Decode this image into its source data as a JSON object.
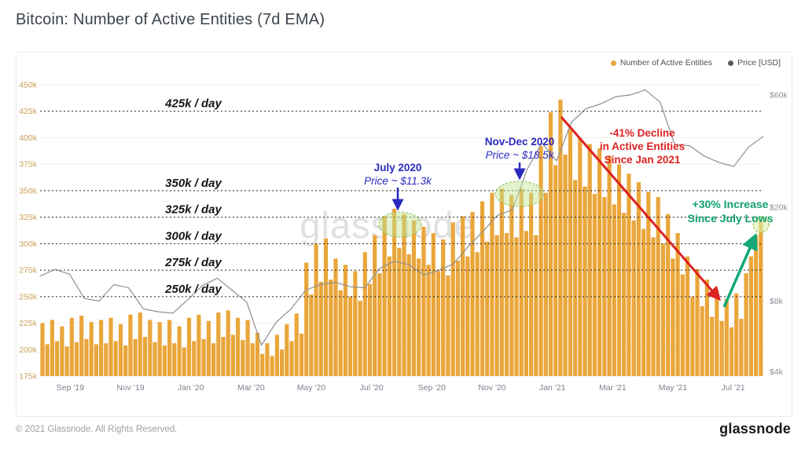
{
  "page": {
    "title": "Bitcoin: Number of Active Entities (7d EMA)",
    "watermark": "glassnode",
    "footer": {
      "copyright": "© 2021 Glassnode. All Rights Reserved.",
      "brand": "glassnode"
    }
  },
  "legend": {
    "items": [
      {
        "label": "Number of Active Entities",
        "color": "#EAA63B"
      },
      {
        "label": "Price [USD]",
        "color": "#5c5c5c"
      }
    ]
  },
  "colors": {
    "bar": "#EAA63B",
    "price_line": "#8f8f8f",
    "grid": "#f0efec",
    "left_axis_label": "#c9a159",
    "right_axis_label": "#8a8f98",
    "x_axis_label": "#7c828c",
    "ref_line": "#2c2c2c",
    "ref_label": "#151515",
    "blue": "#2a2ac0",
    "red": "#dd2222",
    "green": "#12a877",
    "ellipse_fill": "rgba(191,229,147,0.45)",
    "ellipse_stroke": "#8fbf5a"
  },
  "chart_data": {
    "type": "bar+line",
    "title": "Bitcoin: Number of Active Entities (7d EMA)",
    "x_start": "Aug 2019",
    "x_end": "Aug 2021",
    "x_tick_labels": [
      "Sep '19",
      "Nov '19",
      "Jan '20",
      "Mar '20",
      "May '20",
      "Jul '20",
      "Sep '20",
      "Nov '20",
      "Jan '21",
      "Mar '21",
      "May '21",
      "Jul '21"
    ],
    "left_axis": {
      "unit": "active entities per day (thousands)",
      "min": 175,
      "max": 450,
      "ticks": [
        450,
        425,
        400,
        375,
        350,
        325,
        300,
        275,
        250,
        225,
        200,
        175
      ],
      "tick_suffix": "k"
    },
    "right_axis": {
      "unit": "price USD",
      "scale": "log",
      "ticks": [
        "$60k",
        "$20k",
        "$8k",
        "$4k"
      ],
      "tick_values_usd": [
        60000,
        20000,
        8000,
        4000
      ]
    },
    "series": [
      {
        "name": "Number of Active Entities",
        "type": "bar",
        "unit": "thousands per day",
        "values": [
          225,
          205,
          228,
          208,
          222,
          203,
          230,
          207,
          232,
          210,
          226,
          205,
          228,
          206,
          230,
          208,
          224,
          204,
          233,
          210,
          235,
          212,
          228,
          207,
          226,
          204,
          228,
          206,
          222,
          202,
          230,
          208,
          233,
          210,
          227,
          206,
          235,
          212,
          237,
          214,
          230,
          209,
          228,
          206,
          216,
          196,
          206,
          194,
          214,
          200,
          224,
          208,
          234,
          215,
          282,
          252,
          300,
          264,
          305,
          266,
          286,
          256,
          280,
          250,
          274,
          246,
          292,
          262,
          308,
          272,
          326,
          288,
          333,
          296,
          328,
          290,
          322,
          286,
          316,
          280,
          310,
          274,
          304,
          270,
          320,
          284,
          326,
          288,
          330,
          292,
          340,
          302,
          348,
          308,
          352,
          310,
          346,
          306,
          352,
          312,
          348,
          308,
          392,
          348,
          424,
          374,
          436,
          384,
          408,
          360,
          400,
          354,
          394,
          347,
          390,
          344,
          383,
          337,
          375,
          329,
          366,
          322,
          358,
          314,
          349,
          306,
          344,
          300,
          328,
          286,
          310,
          271,
          288,
          250,
          276,
          241,
          266,
          231,
          256,
          227,
          248,
          221,
          253,
          229,
          272,
          288,
          308,
          322
        ]
      },
      {
        "name": "Price [USD]",
        "type": "line",
        "unit": "USD (thousands)",
        "values": [
          10.2,
          10.9,
          10.4,
          8.2,
          8.0,
          9.4,
          9.1,
          7.4,
          7.2,
          7.1,
          8.1,
          9.3,
          10.0,
          8.9,
          7.9,
          5.2,
          6.5,
          7.4,
          8.9,
          9.4,
          9.6,
          9.2,
          9.1,
          11.0,
          11.8,
          11.4,
          10.3,
          10.8,
          11.5,
          13.6,
          15.8,
          18.5,
          19.5,
          29.0,
          37.5,
          31.5,
          46.0,
          52.5,
          55.0,
          59.0,
          60.0,
          63.0,
          56.0,
          37.0,
          36.5,
          33.0,
          31.0,
          29.8,
          36.0,
          40.0
        ]
      }
    ],
    "reference_lines": [
      {
        "value": 425,
        "label": "425k / day"
      },
      {
        "value": 350,
        "label": "350k / day"
      },
      {
        "value": 325,
        "label": "325k / day"
      },
      {
        "value": 300,
        "label": "300k / day"
      },
      {
        "value": 275,
        "label": "275k / day"
      },
      {
        "value": 250,
        "label": "250k / day"
      }
    ],
    "annotations": [
      {
        "id": "july-2020",
        "color": "blue",
        "text_lines": [
          "July 2020",
          "Price ~ $11.3k"
        ]
      },
      {
        "id": "nov-dec-2020",
        "color": "blue",
        "text_lines": [
          "Nov-Dec 2020",
          "Price ~ $18.5k"
        ]
      },
      {
        "id": "decline",
        "color": "red",
        "text_lines": [
          "-41% Decline",
          "in Active Entities",
          "Since Jan 2021"
        ]
      },
      {
        "id": "increase",
        "color": "green",
        "text_lines": [
          "+30% Increase",
          "Since July Lows"
        ]
      }
    ]
  }
}
